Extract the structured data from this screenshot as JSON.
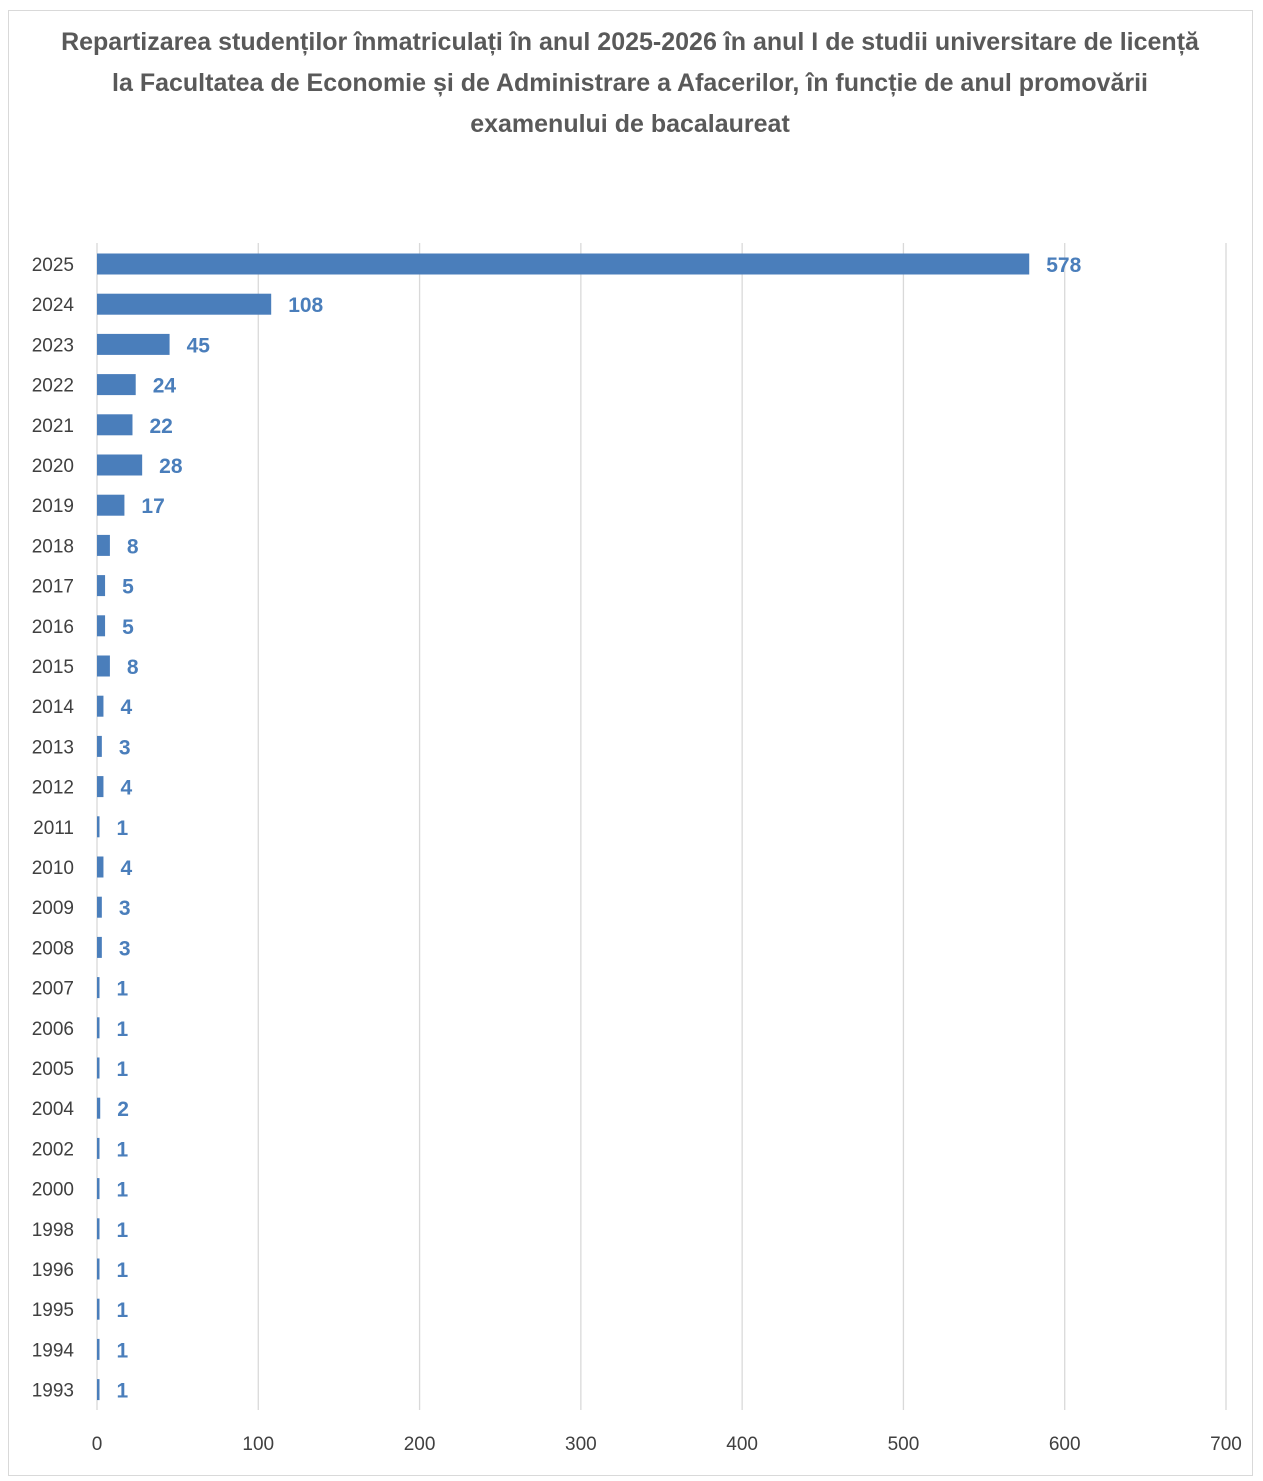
{
  "chart_data": {
    "type": "bar",
    "orientation": "horizontal",
    "title": "Repartizarea studenților înmatriculați în anul 2025-2026 în anul I de studii universitare de licență la Facultatea de Economie și de Administrare a Afacerilor, în funcție de anul promovării examenului de bacalaureat",
    "categories": [
      "2025",
      "2024",
      "2023",
      "2022",
      "2021",
      "2020",
      "2019",
      "2018",
      "2017",
      "2016",
      "2015",
      "2014",
      "2013",
      "2012",
      "2011",
      "2010",
      "2009",
      "2008",
      "2007",
      "2006",
      "2005",
      "2004",
      "2002",
      "2000",
      "1998",
      "1996",
      "1995",
      "1994",
      "1993"
    ],
    "values": [
      578,
      108,
      45,
      24,
      22,
      28,
      17,
      8,
      5,
      5,
      8,
      4,
      3,
      4,
      1,
      4,
      3,
      3,
      1,
      1,
      1,
      2,
      1,
      1,
      1,
      1,
      1,
      1,
      1
    ],
    "xlim": [
      0,
      700
    ],
    "xticks": [
      "0",
      "100",
      "200",
      "300",
      "400",
      "500",
      "600",
      "700"
    ],
    "grid": "vertical",
    "data_labels": true,
    "legend": "none",
    "bar_color": "#4a7ebb",
    "label_color": "#4a7ebb",
    "grid_color": "#d9d9d9"
  }
}
